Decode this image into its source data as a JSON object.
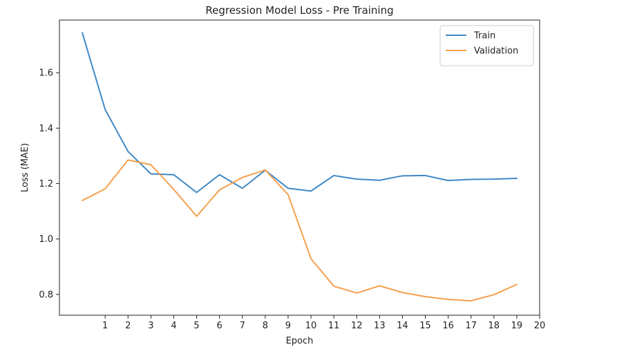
{
  "chart_data": {
    "type": "line",
    "title": "Regression Model Loss - Pre Training",
    "xlabel": "Epoch",
    "ylabel": "Loss (MAE)",
    "x": [
      0,
      1,
      2,
      3,
      4,
      5,
      6,
      7,
      8,
      9,
      10,
      11,
      12,
      13,
      14,
      15,
      16,
      17,
      18,
      19
    ],
    "xticks": [
      1,
      2,
      3,
      4,
      5,
      6,
      7,
      8,
      9,
      10,
      11,
      12,
      13,
      14,
      15,
      16,
      17,
      18,
      19,
      20
    ],
    "yticks": [
      0.8,
      1.0,
      1.2,
      1.4,
      1.6
    ],
    "ytick_labels": [
      "0.8",
      "1.0",
      "1.2",
      "1.4",
      "1.6"
    ],
    "xlim": [
      -1,
      20
    ],
    "ylim": [
      0.725,
      1.79
    ],
    "grid": false,
    "legend_position": "top-right",
    "series": [
      {
        "name": "Train",
        "color": "#3f88c5",
        "values": [
          1.744,
          1.467,
          1.316,
          1.235,
          1.232,
          1.168,
          1.232,
          1.183,
          1.248,
          1.183,
          1.173,
          1.229,
          1.216,
          1.212,
          1.228,
          1.229,
          1.211,
          1.215,
          1.216,
          1.219
        ]
      },
      {
        "name": "Validation",
        "color": "#f5a04d",
        "values": [
          1.139,
          1.181,
          1.285,
          1.268,
          1.179,
          1.082,
          1.177,
          1.222,
          1.249,
          1.16,
          0.929,
          0.83,
          0.805,
          0.831,
          0.807,
          0.792,
          0.782,
          0.777,
          0.799,
          0.836
        ]
      }
    ]
  }
}
